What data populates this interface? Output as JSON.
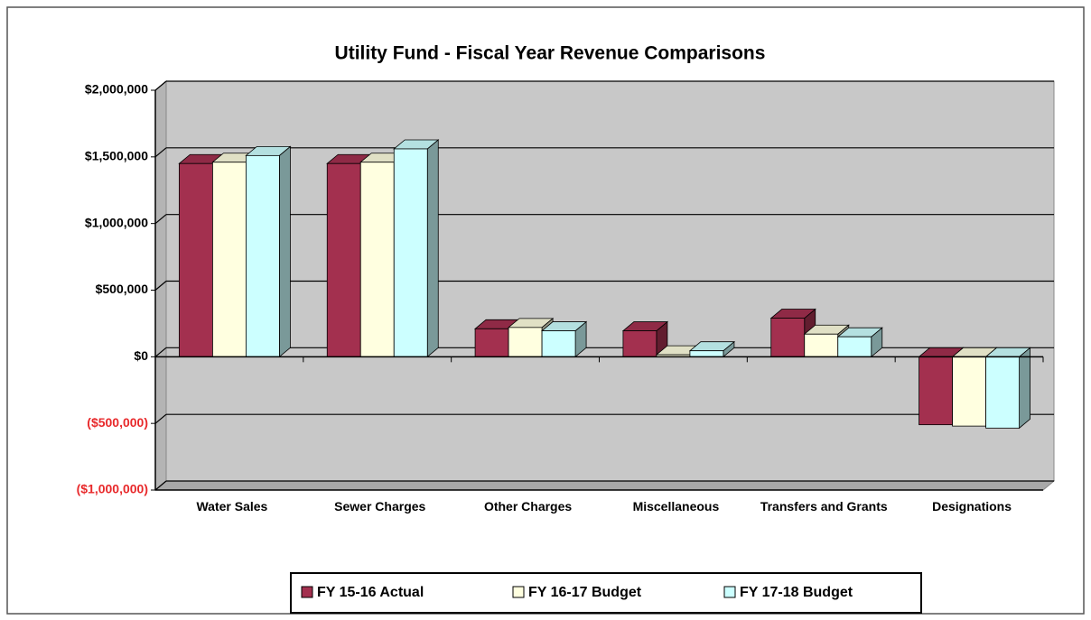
{
  "chart_data": {
    "type": "bar3d",
    "title": "Utility Fund - Fiscal Year Revenue Comparisons",
    "categories": [
      "Water Sales",
      "Sewer Charges",
      "Other Charges",
      "Miscellaneous",
      "Transfers and Grants",
      "Designations"
    ],
    "series": [
      {
        "name": "FY 15-16 Actual",
        "color": "#a3304f",
        "values": [
          1450000,
          1450000,
          210000,
          195000,
          290000,
          -510000
        ]
      },
      {
        "name": "FY 16-17 Budget",
        "color": "#ffffe0",
        "values": [
          1460000,
          1460000,
          220000,
          15000,
          170000,
          -520000
        ]
      },
      {
        "name": "FY 17-18 Budget",
        "color": "#ccffff",
        "values": [
          1510000,
          1560000,
          195000,
          45000,
          150000,
          -535000
        ]
      }
    ],
    "ylim": [
      -1000000,
      2000000
    ],
    "yticks": [
      {
        "value": -1000000,
        "label": "($1,000,000)"
      },
      {
        "value": -500000,
        "label": "($500,000)"
      },
      {
        "value": 0,
        "label": "$0"
      },
      {
        "value": 500000,
        "label": "$500,000"
      },
      {
        "value": 1000000,
        "label": "$1,000,000"
      },
      {
        "value": 1500000,
        "label": "$1,500,000"
      },
      {
        "value": 2000000,
        "label": "$2,000,000"
      }
    ],
    "negative_label_color": "#e8292b",
    "grid": true,
    "legend": "bottom"
  }
}
